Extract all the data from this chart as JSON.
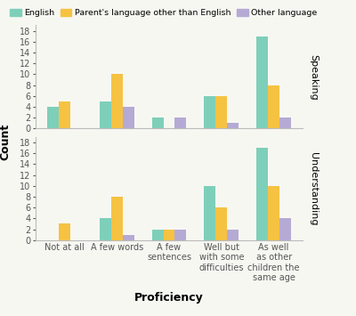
{
  "categories": [
    "Not at all",
    "A few words",
    "A few\nsentences",
    "Well but\nwith some\ndifficulties",
    "As well\nas other\nchildren the\nsame age"
  ],
  "speaking": {
    "English": [
      4,
      5,
      2,
      6,
      17
    ],
    "Parent": [
      5,
      10,
      0,
      6,
      8
    ],
    "Other": [
      0,
      4,
      2,
      1,
      2
    ]
  },
  "understanding": {
    "English": [
      0,
      4,
      2,
      10,
      17
    ],
    "Parent": [
      3,
      8,
      2,
      6,
      10
    ],
    "Other": [
      0,
      1,
      2,
      2,
      4
    ]
  },
  "colors": {
    "English": "#7ecfb9",
    "Parent": "#f5c242",
    "Other": "#b5aad4"
  },
  "legend_labels": [
    "English",
    "Parent's language other than English",
    "Other language"
  ],
  "ylabel": "Count",
  "xlabel": "Proficiency",
  "row_labels": [
    "Speaking",
    "Understanding"
  ],
  "ylim": [
    0,
    19
  ],
  "yticks": [
    0,
    2,
    4,
    6,
    8,
    10,
    12,
    14,
    16,
    18
  ],
  "bar_width": 0.22,
  "background_color": "#f7f7f2"
}
